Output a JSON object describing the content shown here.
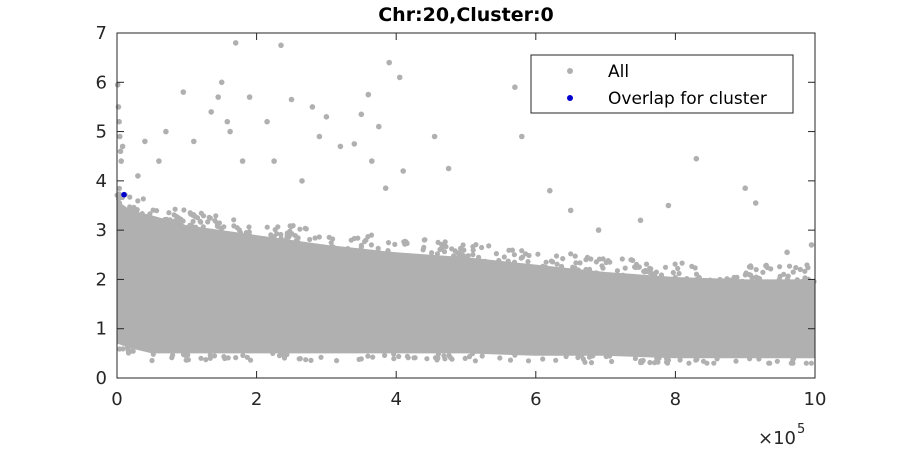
{
  "chart_data": {
    "type": "scatter",
    "title": "Chr:20,Cluster:0",
    "xlabel": "",
    "ylabel": "",
    "xlim": [
      0,
      1000000
    ],
    "ylim": [
      0,
      7
    ],
    "x_tick_values": [
      0,
      200000,
      400000,
      600000,
      800000,
      1000000
    ],
    "x_tick_labels": [
      "0",
      "2",
      "4",
      "6",
      "8",
      "10"
    ],
    "x_exponent_label": "×10",
    "x_exponent_power": "5",
    "y_tick_values": [
      0,
      1,
      2,
      3,
      4,
      5,
      6,
      7
    ],
    "y_tick_labels": [
      "0",
      "1",
      "2",
      "3",
      "4",
      "5",
      "6",
      "7"
    ],
    "grid": false,
    "legend": {
      "placement": "top-right",
      "entries": [
        {
          "label": "All",
          "color": "#b0b0b0"
        },
        {
          "label": "Overlap for cluster",
          "color": "#0000cc"
        }
      ]
    },
    "series": [
      {
        "name": "All",
        "color": "#b0b0b0",
        "density_band": {
          "x": [
            0,
            20000,
            50000,
            100000,
            200000,
            300000,
            400000,
            500000,
            600000,
            700000,
            800000,
            900000,
            1000000
          ],
          "upper": [
            3.6,
            3.4,
            3.3,
            3.1,
            2.9,
            2.7,
            2.55,
            2.45,
            2.3,
            2.15,
            2.05,
            2.0,
            2.0
          ],
          "lower": [
            0.7,
            0.6,
            0.5,
            0.5,
            0.5,
            0.5,
            0.5,
            0.5,
            0.45,
            0.45,
            0.4,
            0.4,
            0.4
          ]
        },
        "outliers": [
          {
            "x": 1000,
            "y": 5.95
          },
          {
            "x": 2000,
            "y": 5.5
          },
          {
            "x": 3000,
            "y": 5.2
          },
          {
            "x": 4000,
            "y": 4.9
          },
          {
            "x": 5000,
            "y": 4.6
          },
          {
            "x": 6000,
            "y": 4.4
          },
          {
            "x": 8000,
            "y": 4.7
          },
          {
            "x": 30000,
            "y": 4.1
          },
          {
            "x": 40000,
            "y": 4.8
          },
          {
            "x": 60000,
            "y": 4.4
          },
          {
            "x": 70000,
            "y": 5.0
          },
          {
            "x": 95000,
            "y": 5.8
          },
          {
            "x": 110000,
            "y": 4.8
          },
          {
            "x": 135000,
            "y": 5.4
          },
          {
            "x": 145000,
            "y": 5.7
          },
          {
            "x": 150000,
            "y": 6.0
          },
          {
            "x": 158000,
            "y": 5.2
          },
          {
            "x": 162000,
            "y": 5.0
          },
          {
            "x": 170000,
            "y": 6.8
          },
          {
            "x": 180000,
            "y": 4.4
          },
          {
            "x": 190000,
            "y": 5.7
          },
          {
            "x": 215000,
            "y": 5.2
          },
          {
            "x": 225000,
            "y": 4.4
          },
          {
            "x": 235000,
            "y": 6.75
          },
          {
            "x": 250000,
            "y": 5.65
          },
          {
            "x": 265000,
            "y": 4.0
          },
          {
            "x": 280000,
            "y": 5.5
          },
          {
            "x": 290000,
            "y": 4.9
          },
          {
            "x": 300000,
            "y": 5.3
          },
          {
            "x": 320000,
            "y": 4.7
          },
          {
            "x": 340000,
            "y": 4.75
          },
          {
            "x": 350000,
            "y": 5.35
          },
          {
            "x": 360000,
            "y": 5.75
          },
          {
            "x": 365000,
            "y": 4.4
          },
          {
            "x": 375000,
            "y": 5.1
          },
          {
            "x": 385000,
            "y": 3.85
          },
          {
            "x": 390000,
            "y": 6.4
          },
          {
            "x": 405000,
            "y": 6.1
          },
          {
            "x": 410000,
            "y": 4.2
          },
          {
            "x": 455000,
            "y": 4.9
          },
          {
            "x": 475000,
            "y": 4.25
          },
          {
            "x": 570000,
            "y": 5.9
          },
          {
            "x": 580000,
            "y": 4.9
          },
          {
            "x": 620000,
            "y": 3.8
          },
          {
            "x": 650000,
            "y": 3.4
          },
          {
            "x": 690000,
            "y": 3.0
          },
          {
            "x": 750000,
            "y": 3.2
          },
          {
            "x": 790000,
            "y": 3.5
          },
          {
            "x": 830000,
            "y": 4.45
          },
          {
            "x": 900000,
            "y": 3.85
          },
          {
            "x": 915000,
            "y": 3.55
          },
          {
            "x": 960000,
            "y": 2.55
          },
          {
            "x": 995000,
            "y": 2.7
          }
        ]
      },
      {
        "name": "Overlap for cluster",
        "color": "#0000cc",
        "points": [
          {
            "x": 10000,
            "y": 3.72
          }
        ]
      }
    ]
  }
}
